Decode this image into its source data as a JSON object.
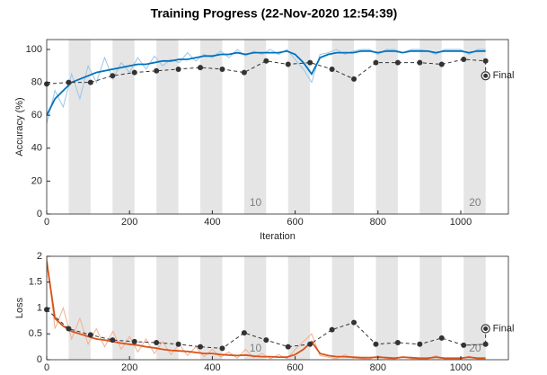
{
  "chart_data": [
    {
      "type": "line",
      "title": "Training Progress (22-Nov-2020 12:54:39)",
      "xlabel": "Iteration",
      "ylabel": "Accuracy (%)",
      "xlim": [
        0,
        1115
      ],
      "xticks": [
        0,
        200,
        400,
        600,
        800,
        1000
      ],
      "ylim": [
        0,
        106
      ],
      "yticks": [
        0,
        20,
        40,
        60,
        80,
        100
      ],
      "epoch_bounds": [
        0,
        53,
        106,
        159,
        212,
        265,
        318,
        371,
        424,
        477,
        530,
        583,
        636,
        689,
        742,
        795,
        848,
        901,
        954,
        1007,
        1060
      ],
      "epoch_labels": [
        {
          "label": "10",
          "x": 477
        },
        {
          "label": "20",
          "x": 1007
        }
      ],
      "x": [
        0,
        20,
        40,
        60,
        80,
        100,
        120,
        140,
        160,
        180,
        200,
        220,
        240,
        260,
        280,
        300,
        320,
        340,
        360,
        380,
        400,
        420,
        440,
        460,
        480,
        500,
        520,
        540,
        560,
        580,
        600,
        620,
        640,
        660,
        680,
        700,
        720,
        740,
        760,
        780,
        800,
        820,
        840,
        860,
        880,
        900,
        920,
        940,
        960,
        980,
        1000,
        1020,
        1040,
        1060
      ],
      "series": [
        {
          "color": "#9ac5e8",
          "width": 1,
          "values": [
            55,
            75,
            65,
            85,
            70,
            90,
            80,
            95,
            82,
            92,
            86,
            95,
            88,
            96,
            90,
            94,
            92,
            98,
            93,
            97,
            95,
            99,
            95,
            100,
            96,
            99,
            97,
            100,
            97,
            100,
            94,
            88,
            80,
            97,
            98,
            100,
            97,
            99,
            100,
            100,
            97,
            100,
            100,
            98,
            100,
            100,
            99,
            97,
            100,
            100,
            100,
            97,
            100,
            100
          ]
        },
        {
          "color": "#0072bd",
          "width": 1.8,
          "values": [
            60,
            70,
            75,
            80,
            82,
            84,
            86,
            87,
            88,
            89,
            90,
            91,
            91,
            92,
            93,
            93,
            94,
            94,
            95,
            96,
            96,
            97,
            97,
            98,
            97,
            98,
            98,
            98,
            98,
            99,
            97,
            92,
            85,
            95,
            97,
            98,
            98,
            98,
            99,
            99,
            98,
            99,
            99,
            98,
            99,
            99,
            99,
            98,
            99,
            99,
            99,
            98,
            99,
            99
          ]
        }
      ],
      "validation": {
        "color": "#333333",
        "x": [
          0,
          53,
          106,
          159,
          212,
          265,
          318,
          371,
          424,
          477,
          530,
          583,
          636,
          689,
          742,
          795,
          848,
          901,
          954,
          1007,
          1060
        ],
        "values": [
          79,
          80,
          80,
          84,
          86,
          87,
          88,
          89,
          88,
          86,
          93,
          91,
          92,
          88,
          82,
          92,
          92,
          92,
          91,
          94,
          93
        ]
      },
      "final": {
        "label": "Final",
        "x": 1060,
        "value": 84
      }
    },
    {
      "type": "line",
      "ylabel": "Loss",
      "xlim": [
        0,
        1115
      ],
      "xticks": [
        0,
        200,
        400,
        600,
        800,
        1000
      ],
      "ylim": [
        0,
        2
      ],
      "yticks": [
        0,
        0.5,
        1,
        1.5,
        2
      ],
      "epoch_bounds": [
        0,
        53,
        106,
        159,
        212,
        265,
        318,
        371,
        424,
        477,
        530,
        583,
        636,
        689,
        742,
        795,
        848,
        901,
        954,
        1007,
        1060
      ],
      "epoch_labels": [
        {
          "label": "10",
          "x": 477
        },
        {
          "label": "20",
          "x": 1007
        }
      ],
      "x": [
        0,
        20,
        40,
        60,
        80,
        100,
        120,
        140,
        160,
        180,
        200,
        220,
        240,
        260,
        280,
        300,
        320,
        340,
        360,
        380,
        400,
        420,
        440,
        460,
        480,
        500,
        520,
        540,
        560,
        580,
        600,
        620,
        640,
        660,
        680,
        700,
        720,
        740,
        760,
        780,
        800,
        820,
        840,
        860,
        880,
        900,
        920,
        940,
        960,
        980,
        1000,
        1020,
        1040,
        1060
      ],
      "series": [
        {
          "color": "#f2b08f",
          "width": 1,
          "values": [
            2,
            0.6,
            1.0,
            0.4,
            0.8,
            0.3,
            0.6,
            0.25,
            0.55,
            0.2,
            0.45,
            0.15,
            0.4,
            0.12,
            0.35,
            0.1,
            0.3,
            0.08,
            0.25,
            0.06,
            0.2,
            0.05,
            0.15,
            0.03,
            0.2,
            0.04,
            0.12,
            0.02,
            0.1,
            0.02,
            0.2,
            0.35,
            0.5,
            0.08,
            0.05,
            0.02,
            0.1,
            0.03,
            0.02,
            0.01,
            0.08,
            0.02,
            0.01,
            0.06,
            0.02,
            0.01,
            0.01,
            0.08,
            0.01,
            0.01,
            0.01,
            0.07,
            0.01,
            0.01
          ]
        },
        {
          "color": "#d95319",
          "width": 1.8,
          "values": [
            1.9,
            0.8,
            0.65,
            0.55,
            0.5,
            0.45,
            0.4,
            0.38,
            0.35,
            0.32,
            0.3,
            0.28,
            0.25,
            0.23,
            0.2,
            0.18,
            0.17,
            0.16,
            0.14,
            0.12,
            0.12,
            0.1,
            0.09,
            0.08,
            0.09,
            0.07,
            0.06,
            0.06,
            0.05,
            0.05,
            0.1,
            0.2,
            0.35,
            0.12,
            0.08,
            0.06,
            0.06,
            0.05,
            0.04,
            0.04,
            0.05,
            0.04,
            0.03,
            0.05,
            0.04,
            0.03,
            0.03,
            0.05,
            0.03,
            0.03,
            0.03,
            0.05,
            0.03,
            0.03
          ]
        }
      ],
      "validation": {
        "color": "#333333",
        "x": [
          0,
          53,
          106,
          159,
          212,
          265,
          318,
          371,
          424,
          477,
          530,
          583,
          636,
          689,
          742,
          795,
          848,
          901,
          954,
          1007,
          1060
        ],
        "values": [
          0.97,
          0.6,
          0.48,
          0.38,
          0.35,
          0.33,
          0.3,
          0.25,
          0.22,
          0.52,
          0.38,
          0.25,
          0.3,
          0.58,
          0.72,
          0.3,
          0.33,
          0.3,
          0.42,
          0.28,
          0.3
        ]
      },
      "final": {
        "label": "Final",
        "x": 1060,
        "value": 0.6
      }
    }
  ]
}
